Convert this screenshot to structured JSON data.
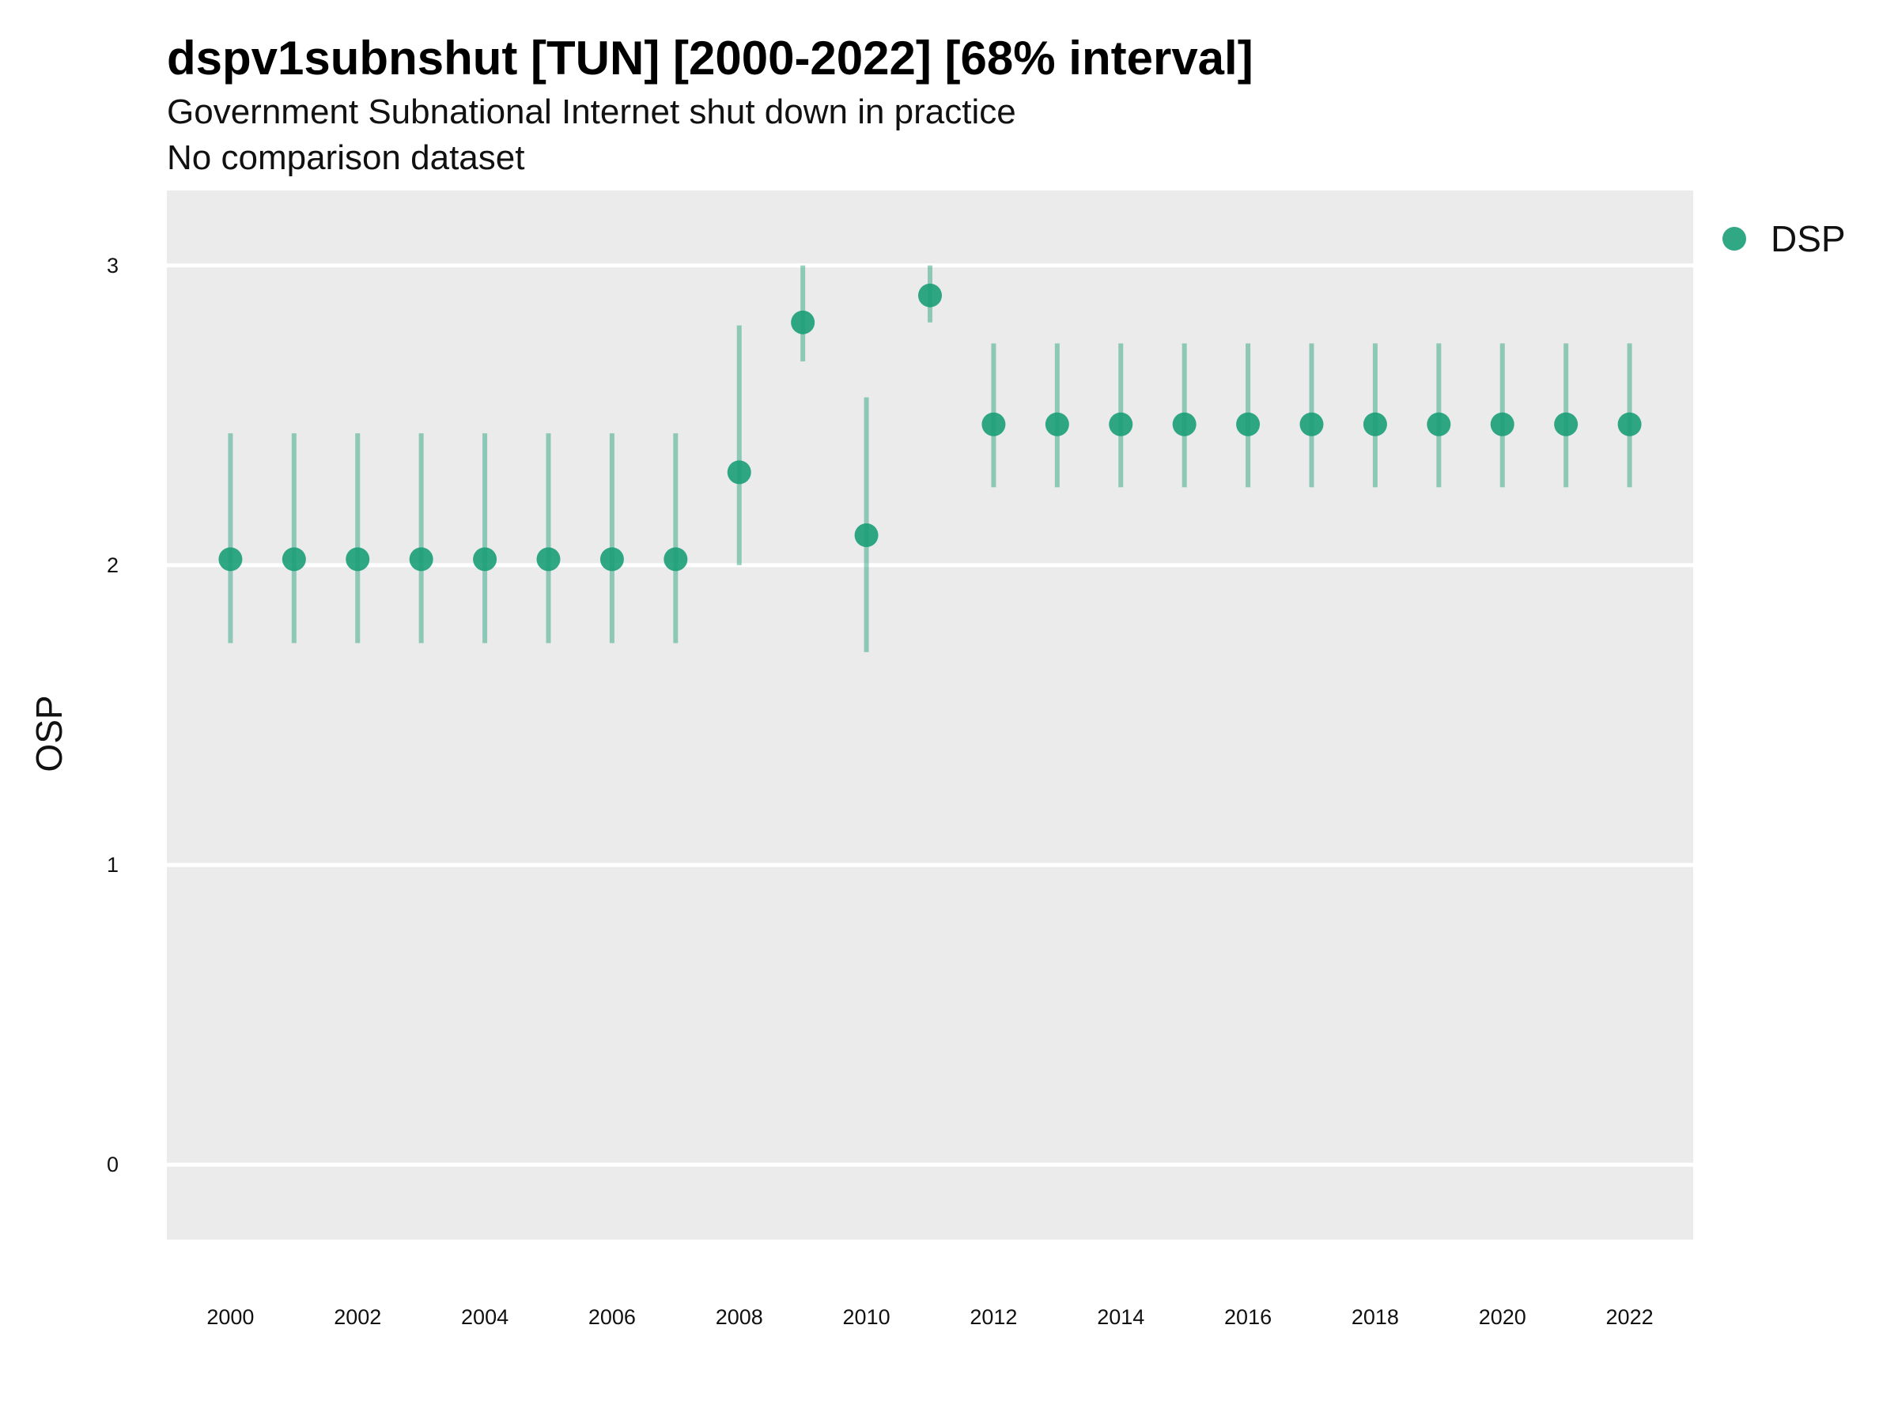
{
  "chart_data": {
    "type": "scatter",
    "title": "dspv1subnshut [TUN] [2000-2022] [68% interval]",
    "subtitle": "Government Subnational Internet shut down in practice",
    "subtitle2": "No comparison dataset",
    "xlabel": "",
    "ylabel": "OSP",
    "ylim": [
      -0.25,
      3.25
    ],
    "xlim": [
      1999,
      2023
    ],
    "x_ticks": [
      2000,
      2002,
      2004,
      2006,
      2008,
      2010,
      2012,
      2014,
      2016,
      2018,
      2020,
      2022
    ],
    "y_ticks": [
      0,
      1,
      2,
      3
    ],
    "grid": true,
    "legend_position": "right",
    "series": [
      {
        "name": "DSP",
        "color": "#1b9e77",
        "points": [
          {
            "x": 2000,
            "y": 2.02,
            "lo": 1.74,
            "hi": 2.44
          },
          {
            "x": 2001,
            "y": 2.02,
            "lo": 1.74,
            "hi": 2.44
          },
          {
            "x": 2002,
            "y": 2.02,
            "lo": 1.74,
            "hi": 2.44
          },
          {
            "x": 2003,
            "y": 2.02,
            "lo": 1.74,
            "hi": 2.44
          },
          {
            "x": 2004,
            "y": 2.02,
            "lo": 1.74,
            "hi": 2.44
          },
          {
            "x": 2005,
            "y": 2.02,
            "lo": 1.74,
            "hi": 2.44
          },
          {
            "x": 2006,
            "y": 2.02,
            "lo": 1.74,
            "hi": 2.44
          },
          {
            "x": 2007,
            "y": 2.02,
            "lo": 1.74,
            "hi": 2.44
          },
          {
            "x": 2008,
            "y": 2.31,
            "lo": 2.0,
            "hi": 2.8
          },
          {
            "x": 2009,
            "y": 2.81,
            "lo": 2.68,
            "hi": 3.0
          },
          {
            "x": 2010,
            "y": 2.1,
            "lo": 1.71,
            "hi": 2.56
          },
          {
            "x": 2011,
            "y": 2.9,
            "lo": 2.81,
            "hi": 3.0
          },
          {
            "x": 2012,
            "y": 2.47,
            "lo": 2.26,
            "hi": 2.74
          },
          {
            "x": 2013,
            "y": 2.47,
            "lo": 2.26,
            "hi": 2.74
          },
          {
            "x": 2014,
            "y": 2.47,
            "lo": 2.26,
            "hi": 2.74
          },
          {
            "x": 2015,
            "y": 2.47,
            "lo": 2.26,
            "hi": 2.74
          },
          {
            "x": 2016,
            "y": 2.47,
            "lo": 2.26,
            "hi": 2.74
          },
          {
            "x": 2017,
            "y": 2.47,
            "lo": 2.26,
            "hi": 2.74
          },
          {
            "x": 2018,
            "y": 2.47,
            "lo": 2.26,
            "hi": 2.74
          },
          {
            "x": 2019,
            "y": 2.47,
            "lo": 2.26,
            "hi": 2.74
          },
          {
            "x": 2020,
            "y": 2.47,
            "lo": 2.26,
            "hi": 2.74
          },
          {
            "x": 2021,
            "y": 2.47,
            "lo": 2.26,
            "hi": 2.74
          },
          {
            "x": 2022,
            "y": 2.47,
            "lo": 2.26,
            "hi": 2.74
          }
        ]
      }
    ]
  }
}
